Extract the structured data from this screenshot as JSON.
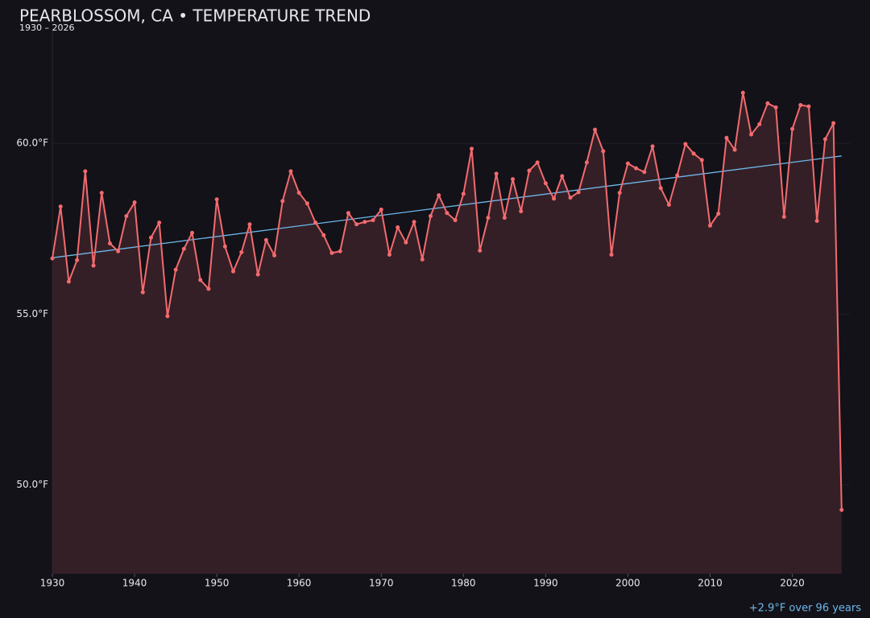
{
  "chart_data": {
    "type": "line",
    "title": "PEARBLOSSOM, CA • TEMPERATURE TREND",
    "subtitle": "1930 – 2026",
    "annotation": "+2.9°F over 96 years",
    "x": [
      1930,
      1931,
      1932,
      1933,
      1934,
      1935,
      1936,
      1937,
      1938,
      1939,
      1940,
      1941,
      1942,
      1943,
      1944,
      1945,
      1946,
      1947,
      1948,
      1949,
      1950,
      1951,
      1952,
      1953,
      1954,
      1955,
      1956,
      1957,
      1958,
      1959,
      1960,
      1961,
      1962,
      1963,
      1964,
      1965,
      1966,
      1967,
      1968,
      1969,
      1970,
      1971,
      1972,
      1973,
      1974,
      1975,
      1976,
      1977,
      1978,
      1979,
      1980,
      1981,
      1982,
      1983,
      1984,
      1985,
      1986,
      1987,
      1988,
      1989,
      1990,
      1991,
      1992,
      1993,
      1994,
      1995,
      1996,
      1997,
      1998,
      1999,
      2000,
      2001,
      2002,
      2003,
      2004,
      2005,
      2006,
      2007,
      2008,
      2009,
      2010,
      2011,
      2012,
      2013,
      2014,
      2015,
      2016,
      2017,
      2018,
      2019,
      2020,
      2021,
      2022,
      2023,
      2024,
      2025,
      2026
    ],
    "series": [
      {
        "color": "#f26b6f",
        "fill": "#351f26",
        "values": [
          56.63,
          58.15,
          55.95,
          56.58,
          59.18,
          56.42,
          58.55,
          57.07,
          56.84,
          57.87,
          58.27,
          55.64,
          57.24,
          57.68,
          54.94,
          56.3,
          56.91,
          57.38,
          56.0,
          55.74,
          58.36,
          56.98,
          56.25,
          56.81,
          57.63,
          56.16,
          57.17,
          56.72,
          58.31,
          59.18,
          58.55,
          58.24,
          57.68,
          57.31,
          56.79,
          56.84,
          57.96,
          57.63,
          57.7,
          57.75,
          58.06,
          56.74,
          57.54,
          57.1,
          57.7,
          56.6,
          57.87,
          58.48,
          57.96,
          57.75,
          58.52,
          59.84,
          56.86,
          57.82,
          59.11,
          57.82,
          58.95,
          58.01,
          59.2,
          59.44,
          58.83,
          58.38,
          59.04,
          58.41,
          58.57,
          59.44,
          60.4,
          59.77,
          56.74,
          58.55,
          59.41,
          59.27,
          59.16,
          59.91,
          58.69,
          58.2,
          59.06,
          59.98,
          59.7,
          59.51,
          57.59,
          57.94,
          60.16,
          59.81,
          61.48,
          60.26,
          60.56,
          61.17,
          61.05,
          57.85,
          60.42,
          61.12,
          61.08,
          57.73,
          60.12,
          60.59,
          49.27
        ]
      }
    ],
    "trend": {
      "color": "#6cb8ec",
      "x": [
        1930,
        2026
      ],
      "values": [
        56.65,
        59.63
      ]
    },
    "xlim": [
      1930,
      2027
    ],
    "xticks": [
      1930,
      1940,
      1950,
      1960,
      1970,
      1980,
      1990,
      2000,
      2010,
      2020
    ],
    "ylim": [
      47.4,
      63.3
    ],
    "yticks": [
      {
        "value": 50,
        "label": "50.0°F"
      },
      {
        "value": 55,
        "label": "55.0°F"
      },
      {
        "value": 60,
        "label": "60.0°F"
      }
    ],
    "grid": true
  }
}
